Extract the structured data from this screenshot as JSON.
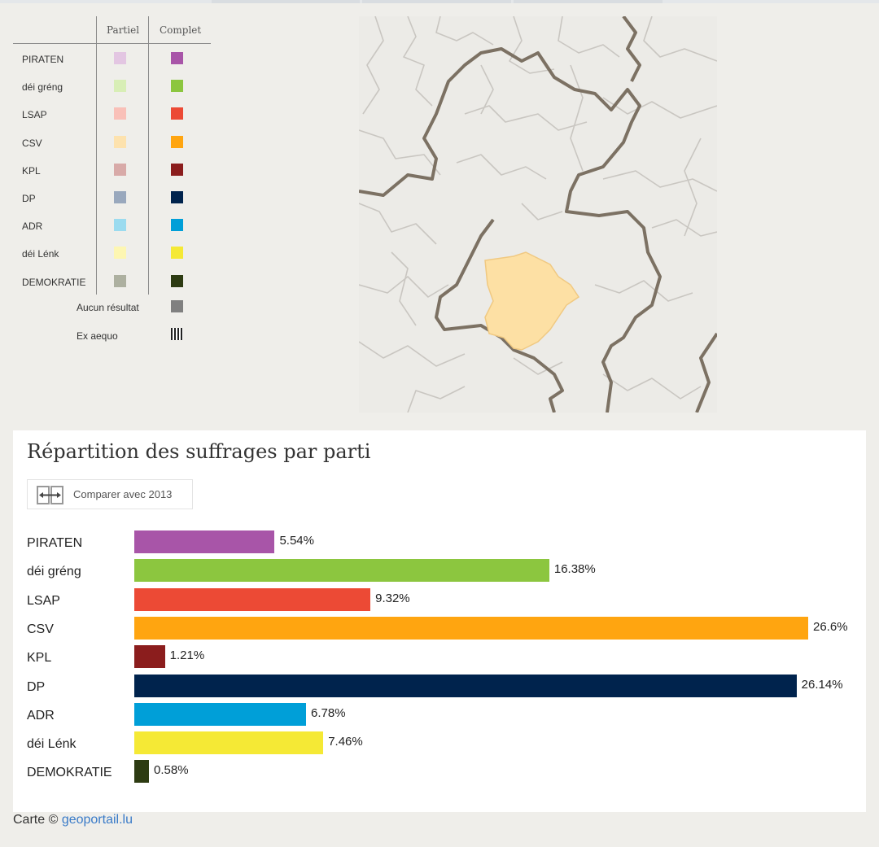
{
  "legend": {
    "partial_header": "Partiel",
    "complete_header": "Complet",
    "parties": [
      {
        "name": "PIRATEN",
        "partial_color": "#e3c6e2",
        "complete_color": "#a855a8"
      },
      {
        "name": "déi gréng",
        "partial_color": "#d8eeb6",
        "complete_color": "#8cc63f"
      },
      {
        "name": "LSAP",
        "partial_color": "#f9c0b8",
        "complete_color": "#ec4a35"
      },
      {
        "name": "CSV",
        "partial_color": "#fde2ae",
        "complete_color": "#ffa510"
      },
      {
        "name": "KPL",
        "partial_color": "#d8aaa8",
        "complete_color": "#8b1d1d"
      },
      {
        "name": "DP",
        "partial_color": "#99a8bd",
        "complete_color": "#00234d"
      },
      {
        "name": "ADR",
        "partial_color": "#9bdbef",
        "complete_color": "#009fd8"
      },
      {
        "name": "déi Lénk",
        "partial_color": "#fdf6b2",
        "complete_color": "#f5e935"
      },
      {
        "name": "DEMOKRATIE",
        "partial_color": "#adb0a0",
        "complete_color": "#2d3b12"
      }
    ],
    "no_result_label": "Aucun résultat",
    "no_result_color": "#808080",
    "tie_label": "Ex aequo"
  },
  "map": {
    "highlight_color": "#fde0a4",
    "border_color": "#7c7163",
    "commune_line_color": "#c9c6c1"
  },
  "chart_panel": {
    "title": "Répartition des suffrages par parti",
    "compare_button": "Comparer avec 2013"
  },
  "chart_data": {
    "type": "bar",
    "orientation": "horizontal",
    "title": "Répartition des suffrages par parti",
    "categories": [
      "PIRATEN",
      "déi gréng",
      "LSAP",
      "CSV",
      "KPL",
      "DP",
      "ADR",
      "déi Lénk",
      "DEMOKRATIE"
    ],
    "values": [
      5.54,
      16.38,
      9.32,
      26.6,
      1.21,
      26.14,
      6.78,
      7.46,
      0.58
    ],
    "value_labels": [
      "5.54%",
      "16.38%",
      "9.32%",
      "26.6%",
      "1.21%",
      "26.14%",
      "6.78%",
      "7.46%",
      "0.58%"
    ],
    "colors": [
      "#a855a8",
      "#8cc63f",
      "#ec4a35",
      "#ffa510",
      "#8b1d1d",
      "#00234d",
      "#009fd8",
      "#f5e935",
      "#2d3b12"
    ],
    "xlim": [
      0,
      26.6
    ],
    "grid": false,
    "legend": "none"
  },
  "footer": {
    "credit_prefix": "Carte ©",
    "credit_link": "geoportail.lu"
  }
}
